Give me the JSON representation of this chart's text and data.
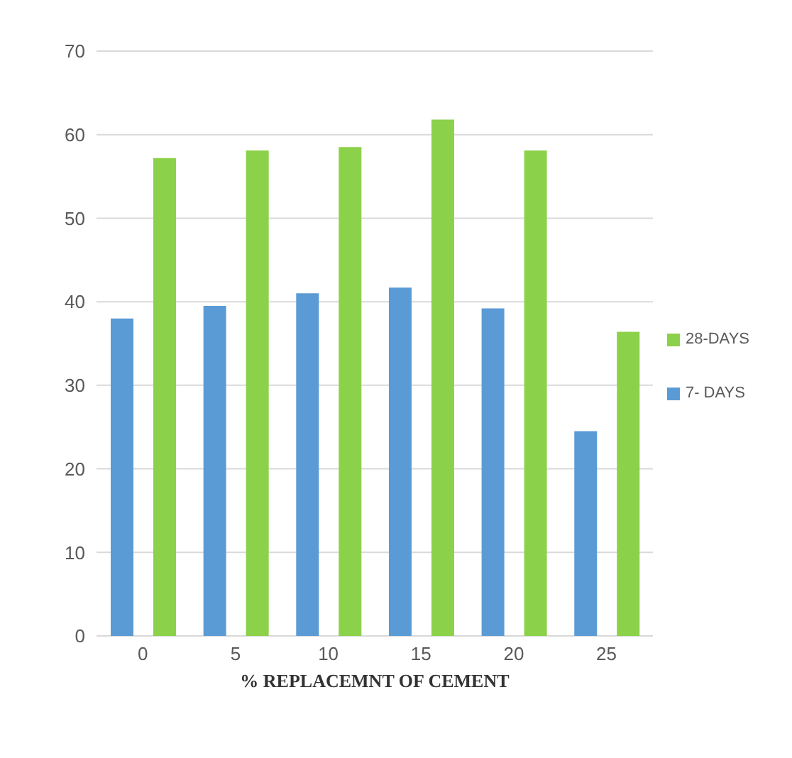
{
  "chart_data": {
    "type": "bar",
    "xlabel": "% REPLACEMNT OF CEMENT",
    "categories": [
      "0",
      "5",
      "10",
      "15",
      "20",
      "25"
    ],
    "series": [
      {
        "name": "7- DAYS",
        "color": "#5b9bd5",
        "values": [
          38,
          39.5,
          41,
          41.7,
          39.2,
          24.5
        ]
      },
      {
        "name": "28-DAYS",
        "color": "#8cd14a",
        "values": [
          57.2,
          58.1,
          58.5,
          61.8,
          58.1,
          36.4
        ]
      }
    ],
    "ylim": [
      0,
      70
    ],
    "yticks": [
      0,
      10,
      20,
      30,
      40,
      50,
      60,
      70
    ],
    "grid": "y",
    "legend": "right"
  }
}
